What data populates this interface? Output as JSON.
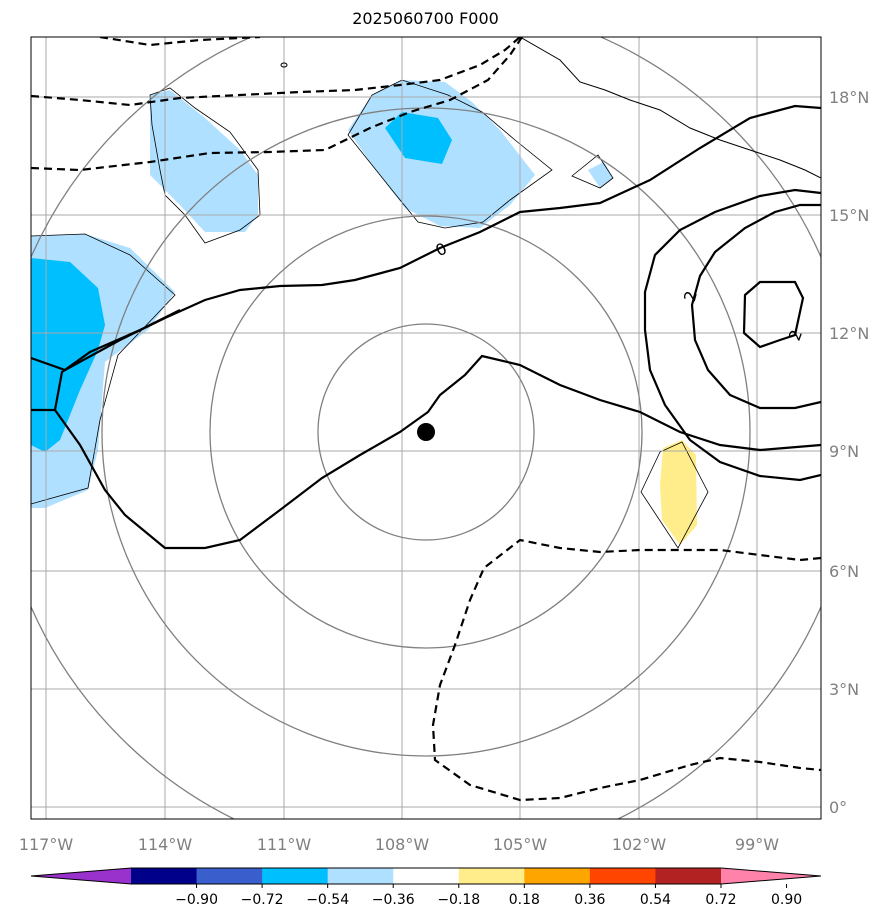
{
  "title": "2025060700 F000",
  "map": {
    "lat_labels": [
      "18°N",
      "15°N",
      "12°N",
      "9°N",
      "6°N",
      "3°N",
      "0°"
    ],
    "lon_labels": [
      "117°W",
      "114°W",
      "111°W",
      "108°W",
      "105°W",
      "102°W",
      "99°W"
    ],
    "contour_labels": [
      "0",
      "2",
      "2"
    ],
    "center_marker": "storm-center-dot"
  },
  "colorbar": {
    "ticks": [
      "−0.90",
      "−0.72",
      "−0.54",
      "−0.36",
      "−0.18",
      "0.18",
      "0.36",
      "0.54",
      "0.72",
      "0.90"
    ],
    "colors": [
      "#9932cc",
      "#00008b",
      "#3a5fcd",
      "#00bfff",
      "#b0e0ff",
      "#ffffff",
      "#ffec8b",
      "#ffa500",
      "#ff4500",
      "#b22222",
      "#ff82ab"
    ]
  },
  "colors": {
    "light_blue": "#b0e0ff",
    "deep_sky_blue": "#00bfff",
    "light_yellow": "#ffec8b",
    "grid": "#aaaaaa",
    "range_rings": "#808080",
    "contours": "#000000"
  }
}
